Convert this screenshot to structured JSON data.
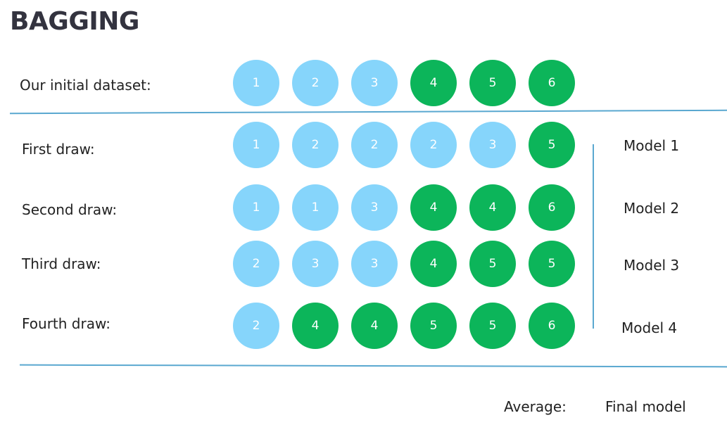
{
  "title": "BAGGING",
  "colors": {
    "light": "#86d5fb",
    "dark": "#0cb55a",
    "line": "#5aa8d0"
  },
  "initial": {
    "label": "Our initial dataset:",
    "balls": [
      {
        "n": "1",
        "c": "light"
      },
      {
        "n": "2",
        "c": "light"
      },
      {
        "n": "3",
        "c": "light"
      },
      {
        "n": "4",
        "c": "dark"
      },
      {
        "n": "5",
        "c": "dark"
      },
      {
        "n": "6",
        "c": "dark"
      }
    ]
  },
  "draws": [
    {
      "label": "First draw:",
      "model": "Model 1",
      "balls": [
        {
          "n": "1",
          "c": "light"
        },
        {
          "n": "2",
          "c": "light"
        },
        {
          "n": "2",
          "c": "light"
        },
        {
          "n": "2",
          "c": "light"
        },
        {
          "n": "3",
          "c": "light"
        },
        {
          "n": "5",
          "c": "dark"
        }
      ]
    },
    {
      "label": "Second draw:",
      "model": "Model 2",
      "balls": [
        {
          "n": "1",
          "c": "light"
        },
        {
          "n": "1",
          "c": "light"
        },
        {
          "n": "3",
          "c": "light"
        },
        {
          "n": "4",
          "c": "dark"
        },
        {
          "n": "4",
          "c": "dark"
        },
        {
          "n": "6",
          "c": "dark"
        }
      ]
    },
    {
      "label": "Third draw:",
      "model": "Model 3",
      "balls": [
        {
          "n": "2",
          "c": "light"
        },
        {
          "n": "3",
          "c": "light"
        },
        {
          "n": "3",
          "c": "light"
        },
        {
          "n": "4",
          "c": "dark"
        },
        {
          "n": "5",
          "c": "dark"
        },
        {
          "n": "5",
          "c": "dark"
        }
      ]
    },
    {
      "label": "Fourth draw:",
      "model": "Model 4",
      "balls": [
        {
          "n": "2",
          "c": "light"
        },
        {
          "n": "4",
          "c": "dark"
        },
        {
          "n": "4",
          "c": "dark"
        },
        {
          "n": "5",
          "c": "dark"
        },
        {
          "n": "5",
          "c": "dark"
        },
        {
          "n": "6",
          "c": "dark"
        }
      ]
    }
  ],
  "footer": {
    "average": "Average:",
    "final": "Final model"
  }
}
